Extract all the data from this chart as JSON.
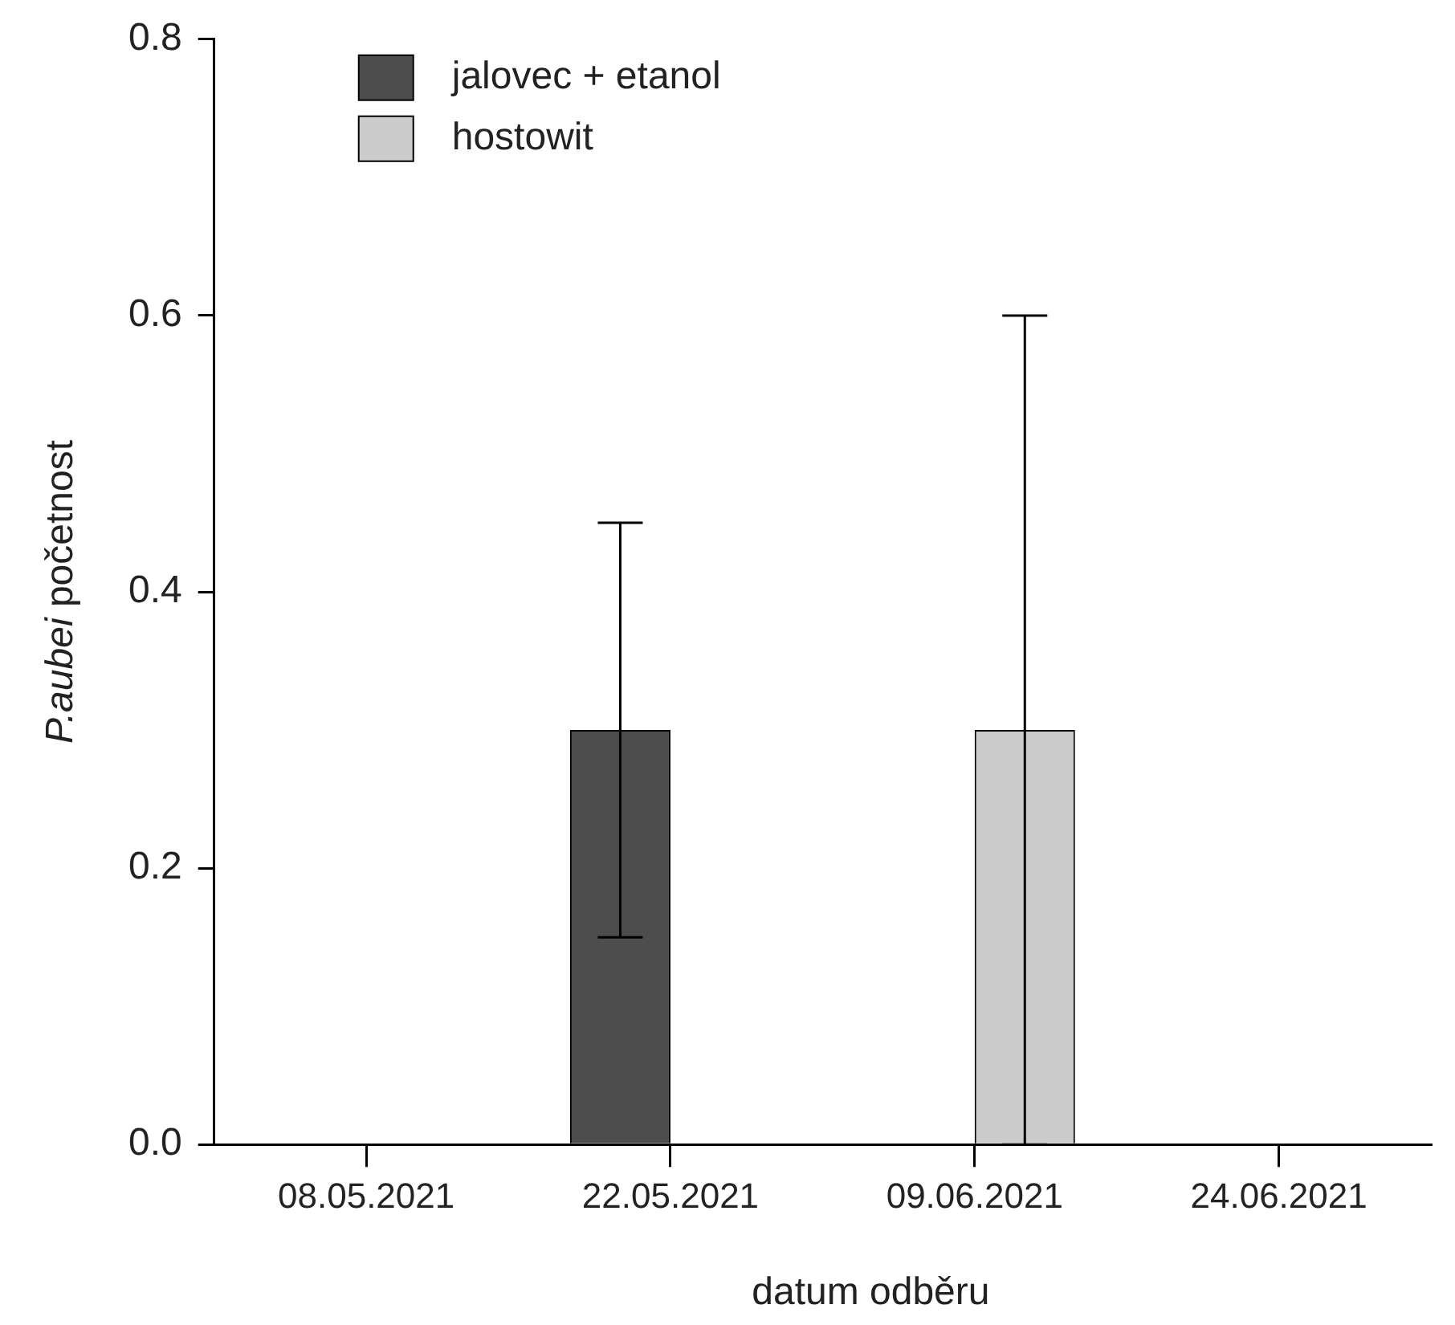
{
  "chart_data": {
    "type": "bar",
    "xlabel": "datum odběru",
    "ylabel": "P.aubei početnost",
    "categories": [
      "08.05.2021",
      "22.05.2021",
      "09.06.2021",
      "24.06.2021"
    ],
    "series": [
      {
        "name": "jalovec + etanol",
        "color": "#4d4d4d",
        "values": [
          0,
          0.3,
          0,
          0
        ],
        "errors": [
          null,
          0.15,
          null,
          null
        ]
      },
      {
        "name": "hostowit",
        "color": "#cccccc",
        "values": [
          0,
          0,
          0.3,
          0
        ],
        "errors": [
          null,
          null,
          0.3,
          null
        ]
      }
    ],
    "ylim": [
      0,
      0.8
    ],
    "yticks": [
      {
        "value": 0,
        "label": "0.0"
      },
      0.2,
      0.4,
      0.6,
      0.8
    ],
    "grid": false,
    "legend": "top left"
  }
}
